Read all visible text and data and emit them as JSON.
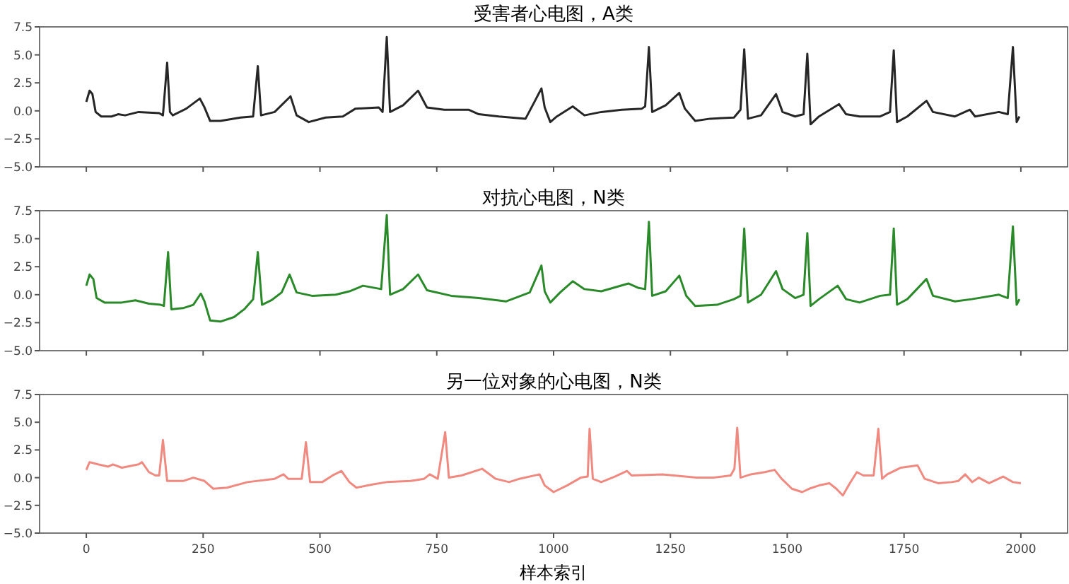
{
  "chart_data": [
    {
      "type": "line",
      "title": "受害者心电图，A类",
      "xlim": [
        -100,
        2100
      ],
      "ylim": [
        -5,
        7.5
      ],
      "xticks": [
        0,
        250,
        500,
        750,
        1000,
        1250,
        1500,
        1750,
        2000
      ],
      "yticks": [
        {
          "value": -5,
          "label": "−5.0"
        },
        {
          "value": -2.5,
          "label": "−2.5"
        },
        {
          "value": 0,
          "label": "0.0"
        },
        {
          "value": 2.5,
          "label": "2.5"
        },
        {
          "value": 5,
          "label": "5.0"
        },
        {
          "value": 7.5,
          "label": "7.5"
        }
      ],
      "tick_labels": "y",
      "grid": false,
      "line_style": "solid",
      "series": [
        {
          "color": "#262626",
          "x": [
            0,
            7,
            13,
            20,
            32,
            54,
            68,
            83,
            112,
            156,
            164,
            173,
            179,
            185,
            214,
            243,
            253,
            265,
            287,
            330,
            357,
            367,
            374,
            403,
            437,
            450,
            476,
            512,
            549,
            576,
            626,
            634,
            643,
            650,
            678,
            710,
            729,
            766,
            818,
            840,
            883,
            940,
            959,
            974,
            981,
            993,
            1007,
            1041,
            1066,
            1102,
            1146,
            1189,
            1196,
            1204,
            1211,
            1240,
            1269,
            1281,
            1303,
            1335,
            1386,
            1400,
            1408,
            1416,
            1444,
            1476,
            1490,
            1517,
            1535,
            1543,
            1550,
            1568,
            1611,
            1626,
            1655,
            1699,
            1720,
            1728,
            1735,
            1757,
            1798,
            1812,
            1859,
            1891,
            1902,
            1953,
            1972,
            1983,
            1991,
            1997
          ],
          "values": [
            0.8,
            1.8,
            1.5,
            -0.1,
            -0.5,
            -0.5,
            -0.3,
            -0.4,
            -0.1,
            -0.2,
            -0.4,
            4.3,
            -0.1,
            -0.4,
            0.2,
            1.1,
            0.3,
            -0.9,
            -0.9,
            -0.6,
            -0.5,
            4.0,
            -0.4,
            -0.1,
            1.3,
            -0.4,
            -1.0,
            -0.6,
            -0.5,
            0.2,
            0.3,
            -0.1,
            6.6,
            -0.1,
            0.5,
            1.8,
            0.3,
            0.1,
            0.1,
            -0.3,
            -0.5,
            -0.7,
            0.8,
            2.0,
            0.3,
            -1.0,
            -0.5,
            0.4,
            -0.4,
            -0.1,
            0.1,
            0.2,
            0.4,
            5.7,
            -0.1,
            0.5,
            1.6,
            0.2,
            -0.9,
            -0.7,
            -0.6,
            0.1,
            5.5,
            -0.7,
            -0.4,
            1.5,
            -0.1,
            -0.5,
            -0.3,
            5.1,
            -1.2,
            -0.5,
            0.6,
            -0.3,
            -0.5,
            -0.5,
            -0.1,
            5.4,
            -1.0,
            -0.5,
            0.9,
            -0.1,
            -0.5,
            0.1,
            -0.5,
            -0.1,
            -0.3,
            5.7,
            -1.0,
            -0.5
          ]
        }
      ]
    },
    {
      "type": "line",
      "title": "对抗心电图，N类",
      "xlim": [
        -100,
        2100
      ],
      "ylim": [
        -5,
        7.5
      ],
      "xticks": [
        0,
        250,
        500,
        750,
        1000,
        1250,
        1500,
        1750,
        2000
      ],
      "yticks": [
        {
          "value": -5,
          "label": "−5.0"
        },
        {
          "value": -2.5,
          "label": "−2.5"
        },
        {
          "value": 0,
          "label": "0.0"
        },
        {
          "value": 2.5,
          "label": "2.5"
        },
        {
          "value": 5,
          "label": "5.0"
        },
        {
          "value": 7.5,
          "label": "7.5"
        }
      ],
      "tick_labels": "y",
      "grid": false,
      "line_style": "solid",
      "series": [
        {
          "color": "#2a8a2a",
          "x": [
            0,
            7,
            15,
            22,
            39,
            76,
            105,
            134,
            159,
            166,
            175,
            182,
            207,
            229,
            245,
            253,
            265,
            287,
            316,
            338,
            357,
            367,
            376,
            396,
            418,
            435,
            450,
            483,
            534,
            563,
            592,
            631,
            643,
            650,
            678,
            710,
            729,
            781,
            840,
            898,
            949,
            974,
            981,
            993,
            1014,
            1041,
            1066,
            1102,
            1160,
            1182,
            1196,
            1204,
            1211,
            1240,
            1269,
            1284,
            1303,
            1350,
            1386,
            1400,
            1408,
            1416,
            1444,
            1476,
            1490,
            1517,
            1535,
            1543,
            1550,
            1568,
            1608,
            1626,
            1655,
            1699,
            1720,
            1728,
            1735,
            1757,
            1798,
            1812,
            1859,
            1895,
            1953,
            1972,
            1983,
            1991,
            1997
          ],
          "values": [
            0.8,
            1.8,
            1.4,
            -0.3,
            -0.7,
            -0.7,
            -0.5,
            -0.8,
            -0.9,
            -1.0,
            3.8,
            -1.3,
            -1.2,
            -0.9,
            0.1,
            -0.6,
            -2.3,
            -2.4,
            -2.0,
            -1.3,
            -0.4,
            3.8,
            -0.9,
            -0.5,
            0.2,
            1.8,
            0.2,
            -0.1,
            0.0,
            0.3,
            0.8,
            0.5,
            7.1,
            0.0,
            0.5,
            1.8,
            0.4,
            -0.1,
            -0.3,
            -0.6,
            0.2,
            2.6,
            0.3,
            -0.7,
            0.2,
            1.2,
            0.5,
            0.3,
            1.0,
            0.6,
            0.5,
            6.5,
            -0.1,
            0.3,
            1.7,
            -0.1,
            -1.0,
            -0.9,
            -0.4,
            -0.1,
            5.9,
            -0.7,
            0.0,
            2.1,
            0.5,
            -0.3,
            0.0,
            5.5,
            -1.0,
            -0.4,
            0.8,
            -0.4,
            -0.7,
            -0.1,
            0.0,
            5.9,
            -0.9,
            -0.4,
            1.4,
            -0.1,
            -0.6,
            -0.4,
            0.0,
            -0.3,
            6.1,
            -0.9,
            -0.4
          ]
        }
      ]
    },
    {
      "type": "line",
      "title": "另一位对象的心电图，N类",
      "xlabel": "样本索引",
      "xlim": [
        -100,
        2100
      ],
      "ylim": [
        -5,
        7.5
      ],
      "xticks": [
        0,
        250,
        500,
        750,
        1000,
        1250,
        1500,
        1750,
        2000
      ],
      "yticks": [
        {
          "value": -5,
          "label": "−5.0"
        },
        {
          "value": -2.5,
          "label": "−2.5"
        },
        {
          "value": 0,
          "label": "0.0"
        },
        {
          "value": 2.5,
          "label": "2.5"
        },
        {
          "value": 5,
          "label": "5.0"
        },
        {
          "value": 7.5,
          "label": "7.5"
        }
      ],
      "grid": false,
      "line_style": "solid",
      "series": [
        {
          "color": "#f08a80",
          "x": [
            0,
            7,
            25,
            47,
            57,
            76,
            112,
            119,
            134,
            148,
            156,
            164,
            173,
            207,
            229,
            253,
            272,
            301,
            345,
            403,
            422,
            432,
            461,
            470,
            479,
            505,
            527,
            546,
            563,
            578,
            614,
            643,
            694,
            723,
            735,
            752,
            768,
            776,
            803,
            847,
            876,
            905,
            927,
            970,
            981,
            1000,
            1029,
            1058,
            1073,
            1077,
            1084,
            1102,
            1131,
            1157,
            1167,
            1233,
            1306,
            1342,
            1379,
            1387,
            1393,
            1400,
            1422,
            1452,
            1473,
            1488,
            1510,
            1532,
            1547,
            1568,
            1590,
            1605,
            1619,
            1634,
            1649,
            1663,
            1685,
            1695,
            1703,
            1714,
            1743,
            1779,
            1794,
            1823,
            1852,
            1866,
            1881,
            1896,
            1910,
            1932,
            1962,
            1983,
            2000
          ],
          "values": [
            0.7,
            1.4,
            1.2,
            1.0,
            1.2,
            0.9,
            1.2,
            1.4,
            0.5,
            0.2,
            0.2,
            3.4,
            -0.3,
            -0.3,
            0.0,
            -0.3,
            -1.0,
            -0.9,
            -0.4,
            -0.1,
            0.3,
            -0.1,
            -0.1,
            3.2,
            -0.4,
            -0.4,
            0.2,
            0.6,
            -0.4,
            -0.9,
            -0.6,
            -0.4,
            -0.3,
            -0.1,
            0.3,
            -0.1,
            4.1,
            0.0,
            0.2,
            0.8,
            -0.1,
            -0.4,
            -0.1,
            0.3,
            -0.7,
            -1.3,
            -0.7,
            0.0,
            0.1,
            4.4,
            -0.1,
            -0.4,
            0.1,
            0.6,
            0.2,
            0.3,
            0.0,
            0.0,
            0.2,
            0.8,
            4.5,
            0.0,
            0.3,
            0.5,
            0.7,
            -0.1,
            -1.0,
            -1.3,
            -1.0,
            -0.7,
            -0.5,
            -1.0,
            -1.6,
            -0.5,
            0.5,
            0.2,
            0.2,
            4.4,
            -0.1,
            0.3,
            0.9,
            1.1,
            -0.1,
            -0.5,
            -0.4,
            -0.3,
            0.3,
            -0.4,
            0.0,
            -0.5,
            0.1,
            -0.4,
            -0.5
          ]
        }
      ]
    }
  ]
}
